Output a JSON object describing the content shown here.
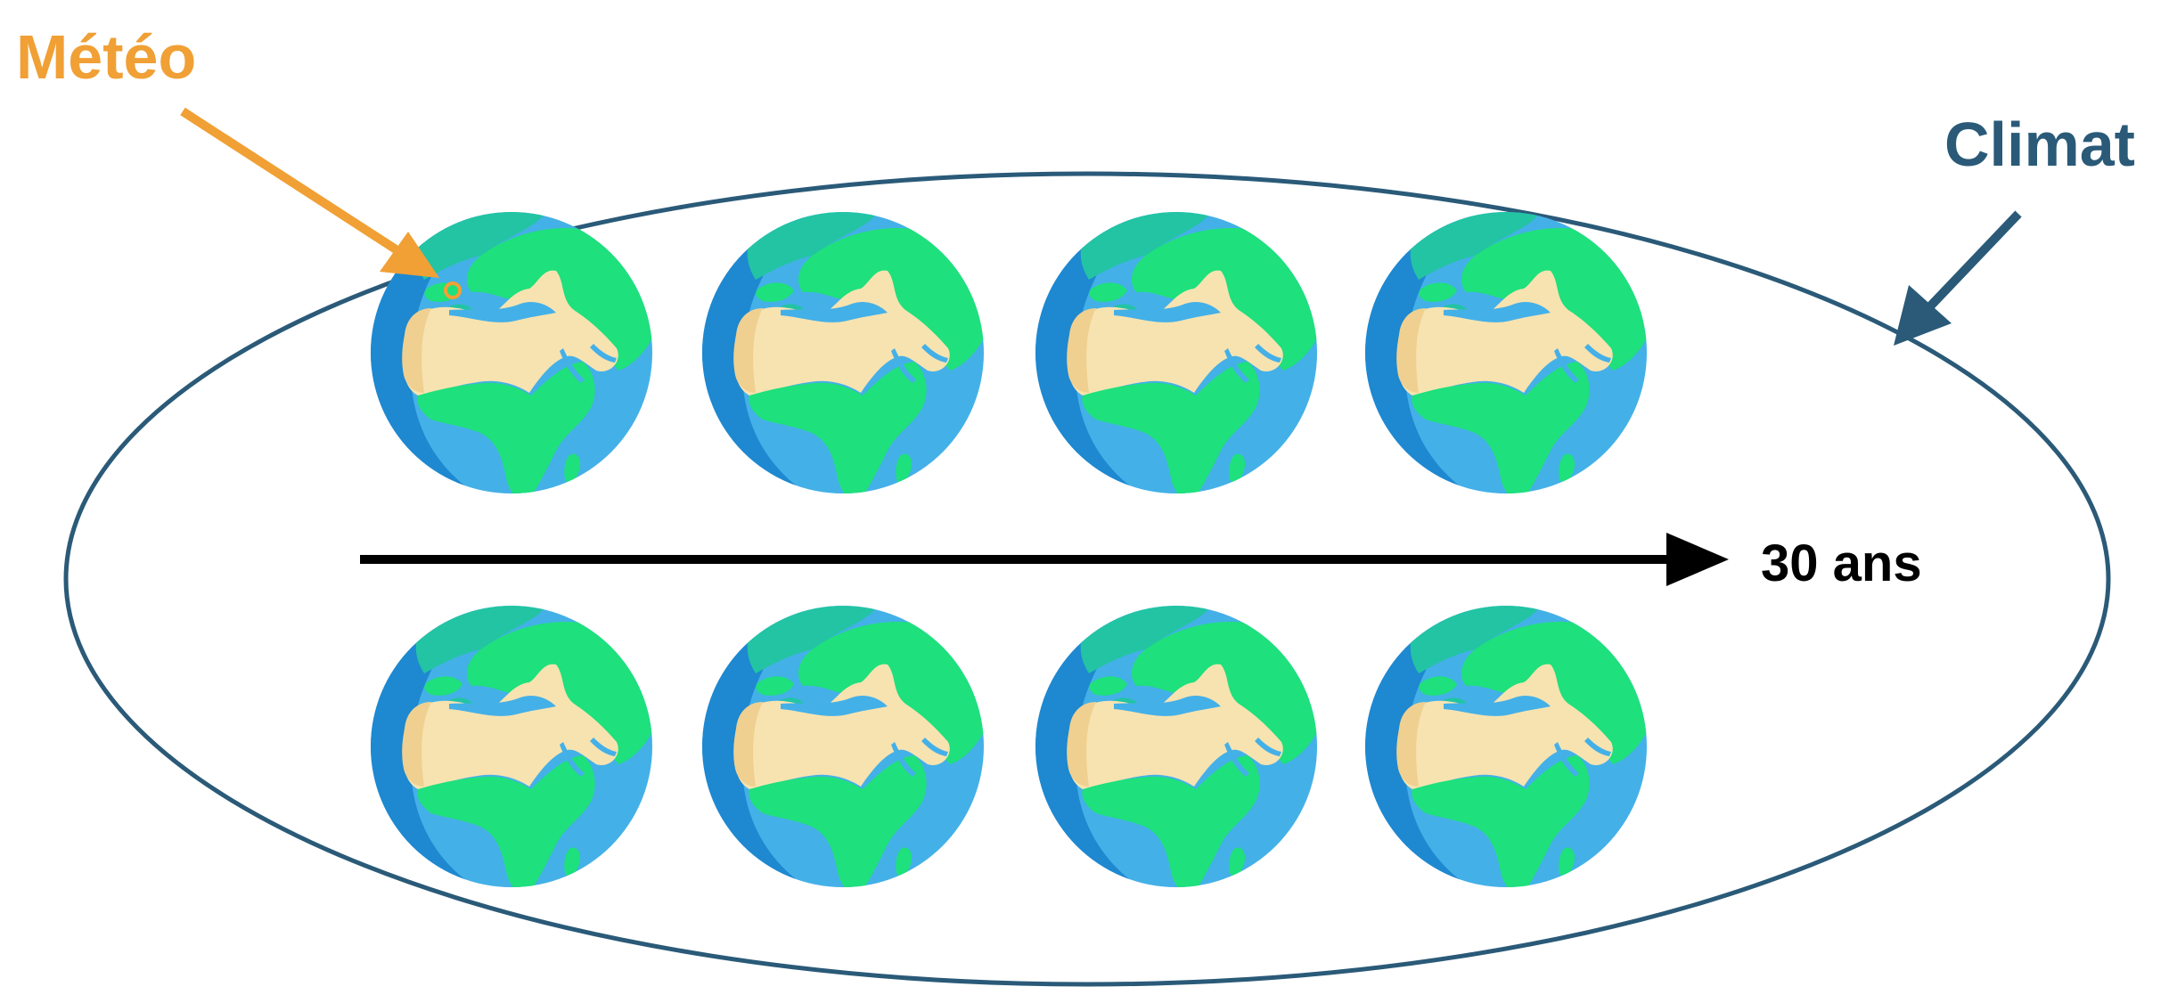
{
  "labels": {
    "weather": "Météo",
    "climate": "Climat",
    "duration": "30 ans"
  },
  "colors": {
    "weather_accent": "#f0a035",
    "climate_accent": "#2a5a78",
    "ellipse_stroke": "#2a5a78",
    "timeline_arrow": "#000000",
    "ocean_light": "#44b0e8",
    "ocean_dark": "#1e88d0",
    "land_sand": "#f7e3b0",
    "land_sand_shade": "#efd090",
    "land_green": "#1ee07c",
    "land_teal": "#22c4a4"
  },
  "icons": {
    "globe_rows": [
      [
        "globe-icon",
        "globe-icon",
        "globe-icon",
        "globe-icon"
      ],
      [
        "globe-icon",
        "globe-icon",
        "globe-icon",
        "globe-icon"
      ]
    ]
  }
}
